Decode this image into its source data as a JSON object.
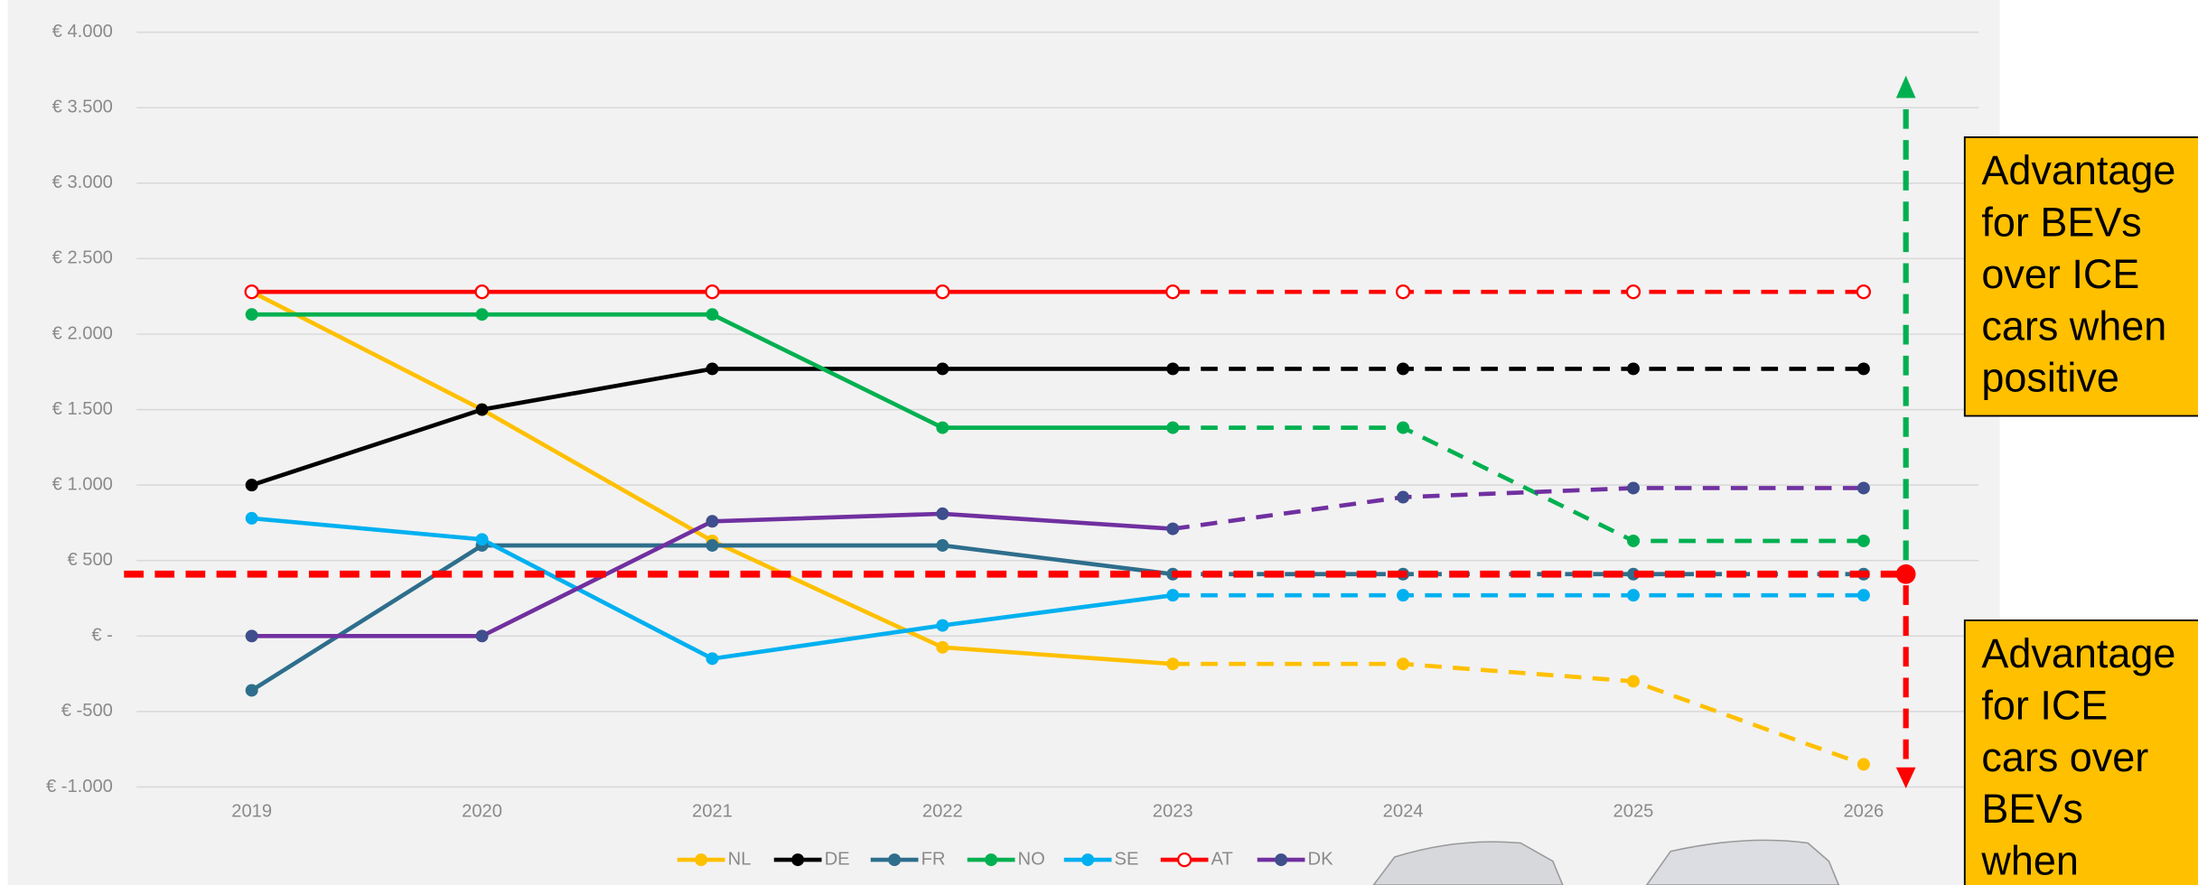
{
  "chart_data": {
    "type": "line",
    "categories": [
      "2019",
      "2020",
      "2021",
      "2022",
      "2023",
      "2024",
      "2025",
      "2026"
    ],
    "dashed_from": "2023",
    "series": [
      {
        "name": "NL",
        "color": "#ffc000",
        "values": [
          2280,
          1500,
          630,
          -75,
          -185,
          -185,
          -300,
          -850
        ]
      },
      {
        "name": "DE",
        "color": "#000000",
        "values": [
          1000,
          1500,
          1770,
          1770,
          1770,
          1770,
          1770,
          1770
        ]
      },
      {
        "name": "FR",
        "color": "#2e6e8c",
        "values": [
          -360,
          600,
          600,
          600,
          410,
          410,
          410,
          410
        ]
      },
      {
        "name": "NO",
        "color": "#00b050",
        "values": [
          2130,
          2130,
          2130,
          1380,
          1380,
          1380,
          630,
          630
        ]
      },
      {
        "name": "SE",
        "color": "#00b0f0",
        "values": [
          780,
          640,
          -150,
          70,
          270,
          270,
          270,
          270
        ]
      },
      {
        "name": "AT",
        "color": "#ff0000",
        "marker_fill": "#ffffff",
        "values": [
          2280,
          2280,
          2280,
          2280,
          2280,
          2280,
          2280,
          2280
        ]
      },
      {
        "name": "DK",
        "color": "#7030a0",
        "marker_color": "#3f4e8c",
        "values": [
          0,
          0,
          760,
          810,
          710,
          920,
          980,
          980
        ]
      }
    ],
    "ylim": [
      -1000,
      4000
    ],
    "yticks": [
      {
        "value": -1000,
        "label": "€ -1.000"
      },
      {
        "value": -500,
        "label": "€ -500"
      },
      {
        "value": 0,
        "label": "€ -"
      },
      {
        "value": 500,
        "label": "€ 500"
      },
      {
        "value": 1000,
        "label": "€ 1.000"
      },
      {
        "value": 1500,
        "label": "€ 1.500"
      },
      {
        "value": 2000,
        "label": "€ 2.000"
      },
      {
        "value": 2500,
        "label": "€ 2.500"
      },
      {
        "value": 3000,
        "label": "€ 3.000"
      },
      {
        "value": 3500,
        "label": "€ 3.500"
      },
      {
        "value": 4000,
        "label": "€ 4.000"
      }
    ],
    "grid": true,
    "legend": "bottom",
    "threshold": {
      "value": 410,
      "color": "#ff0000"
    },
    "annotations": [
      {
        "lines": [
          "Advantage",
          "for BEVs",
          "over ICE",
          "cars when",
          "positive"
        ]
      },
      {
        "lines": [
          "Advantage",
          "for ICE",
          "cars over",
          "BEVs",
          "when"
        ]
      }
    ]
  }
}
